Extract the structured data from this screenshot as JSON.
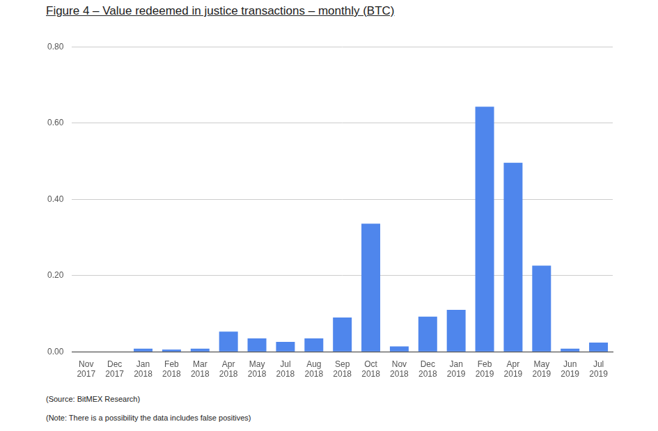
{
  "chart_data": {
    "type": "bar",
    "title": "Figure 4 – Value redeemed in justice transactions – monthly (BTC)",
    "categories": [
      "Nov 2017",
      "Dec 2017",
      "Jan 2018",
      "Feb 2018",
      "Mar 2018",
      "Apr 2018",
      "May 2018",
      "Jul 2018",
      "Aug 2018",
      "Sep 2018",
      "Oct 2018",
      "Nov 2018",
      "Dec 2018",
      "Jan 2019",
      "Feb 2019",
      "Apr 2019",
      "May 2019",
      "Jun 2019",
      "Jul 2019"
    ],
    "values": [
      0,
      0,
      0.008,
      0.006,
      0.008,
      0.053,
      0.035,
      0.026,
      0.035,
      0.09,
      0.336,
      0.014,
      0.092,
      0.11,
      0.643,
      0.496,
      0.226,
      0.008,
      0.024
    ],
    "color": "#4f86ec",
    "ylim": [
      0,
      0.8
    ],
    "yticks": [
      {
        "value": 0,
        "label": "0.00"
      },
      {
        "value": 0.2,
        "label": "0.20"
      },
      {
        "value": 0.4,
        "label": "0.40"
      },
      {
        "value": 0.6,
        "label": "0.60"
      },
      {
        "value": 0.8,
        "label": "0.80"
      }
    ],
    "grid": true,
    "annotations": [
      "(Source: BitMEX Research)",
      "(Note: There is a possibility the data includes false positives)"
    ]
  }
}
